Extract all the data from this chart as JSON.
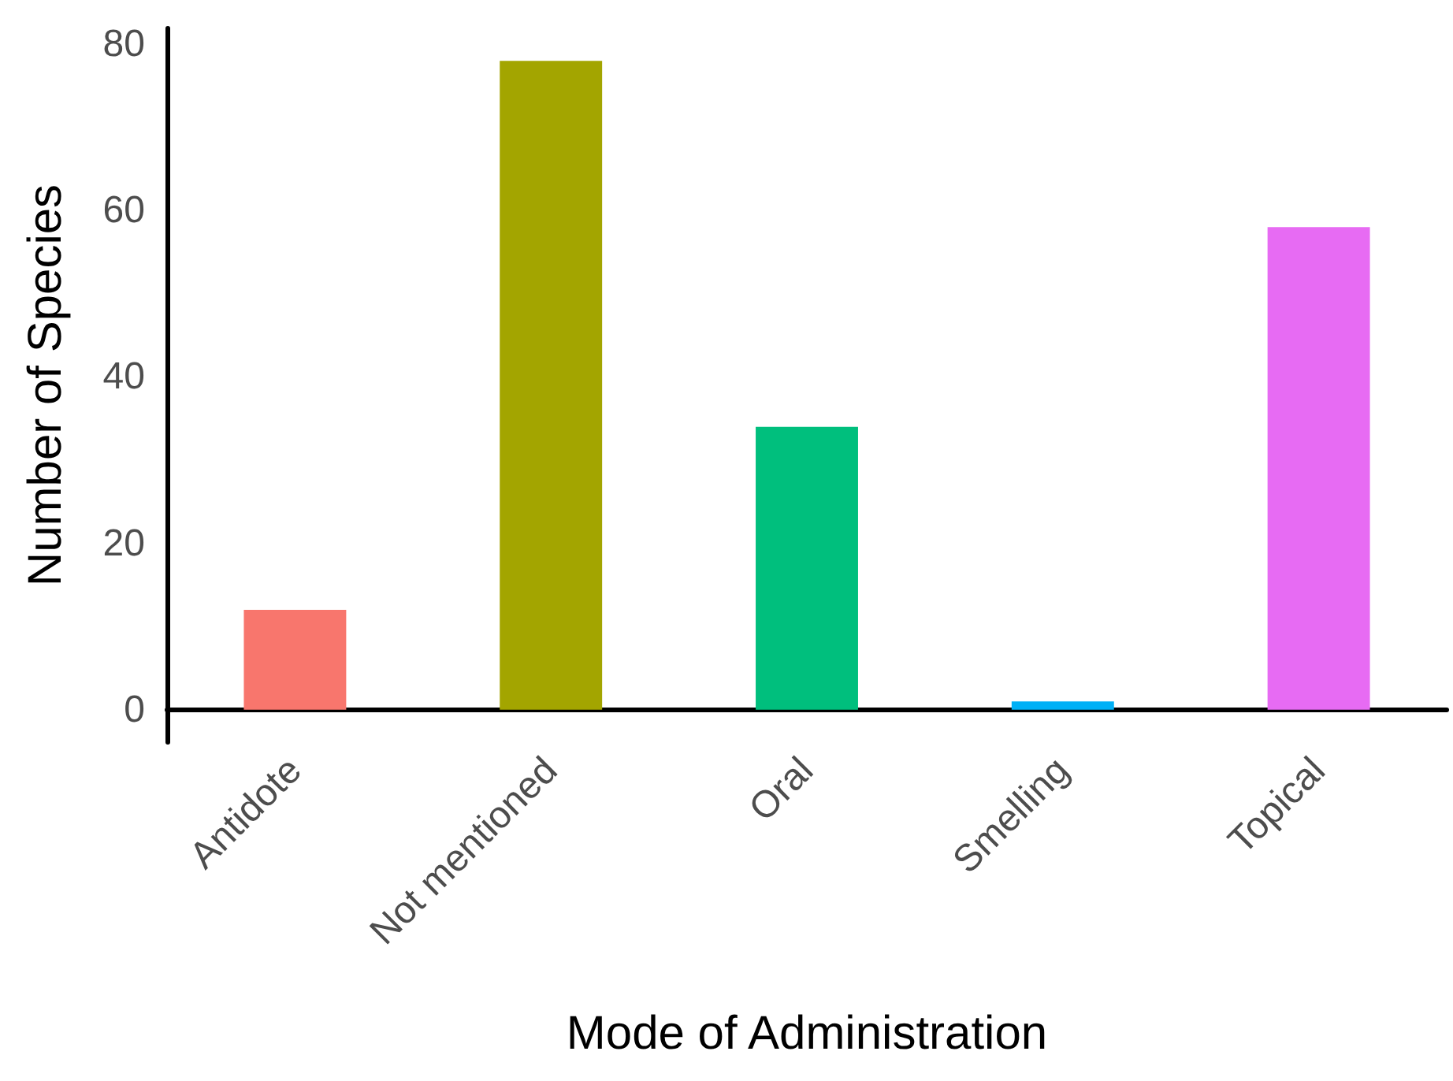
{
  "chart_data": {
    "type": "bar",
    "xlabel": "Mode of Administration",
    "ylabel": "Number of Species",
    "categories": [
      "Antidote",
      "Not mentioned",
      "Oral",
      "Smelling",
      "Topical"
    ],
    "values": [
      12,
      78,
      34,
      1,
      58
    ],
    "colors": [
      "#f8766d",
      "#a3a500",
      "#00bf7d",
      "#00b0f6",
      "#e76bf3"
    ],
    "ylim": [
      -3.9,
      81.9
    ],
    "yticks": [
      0,
      20,
      40,
      60,
      80
    ],
    "grid": false
  }
}
